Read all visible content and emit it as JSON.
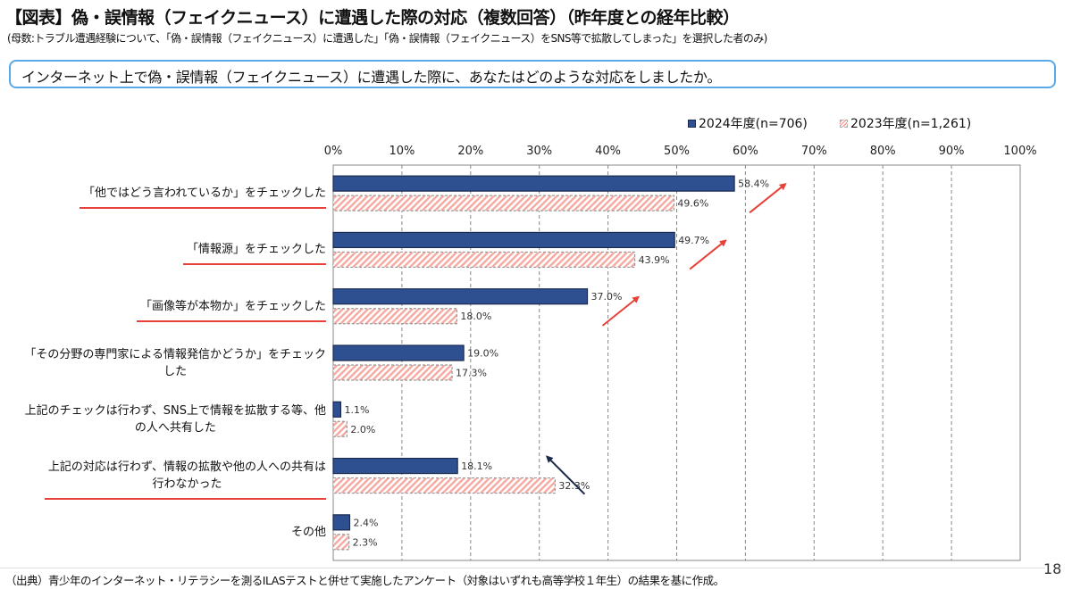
{
  "header": {
    "title": "【図表】偽・誤情報（フェイクニュース）に遭遇した際の対応（複数回答）（昨年度との経年比較）",
    "subtitle": "(母数:トラブル遭遇経験について、「偽・誤情報（フェイクニュース）に遭遇した」「偽・誤情報（フェイクニュース）をSNS等で拡散してしまった」を選択した者のみ)",
    "question": "インターネット上で偽・誤情報（フェイクニュース）に遭遇した際に、あなたはどのような対応をしましたか。"
  },
  "footer": {
    "source": "（出典）青少年のインターネット・リテラシーを測るILASテストと併せて実施したアンケート（対象はいずれも高等学校１年生）の結果を基に作成。",
    "page_number": "18"
  },
  "colors": {
    "series_2024": "#2f5090",
    "series_2023": "#f5a9a0",
    "accent_red": "#e8413a",
    "arrow_navy": "#1c2a4a",
    "question_border": "#5aa9e6"
  },
  "chart_data": {
    "type": "bar",
    "orientation": "horizontal",
    "title": "偽・誤情報（フェイクニュース）に遭遇した際の対応（複数回答）",
    "xlabel": "",
    "ylabel": "",
    "xlim": [
      0,
      100
    ],
    "x_ticks": [
      "0%",
      "10%",
      "20%",
      "30%",
      "40%",
      "50%",
      "60%",
      "70%",
      "80%",
      "90%",
      "100%"
    ],
    "grid": true,
    "legend_position": "top-right",
    "categories": [
      [
        "「他ではどう言われているか」をチェックした"
      ],
      [
        "「情報源」をチェックした"
      ],
      [
        "「画像等が本物か」をチェックした"
      ],
      [
        "「その分野の専門家による情報発信かどうか」をチェック",
        "した"
      ],
      [
        "上記のチェックは行わず、SNS上で情報を拡散する等、他",
        "の人へ共有した"
      ],
      [
        "上記の対応は行わず、情報の拡散や他の人への共有は",
        "行わなかった"
      ],
      [
        "その他"
      ]
    ],
    "series": [
      {
        "name": "2024年度(n=706)",
        "values": [
          58.4,
          49.7,
          37.0,
          19.0,
          1.1,
          18.1,
          2.4
        ],
        "labels": [
          "58.4%",
          "49.7%",
          "37.0%",
          "19.0%",
          "1.1%",
          "18.1%",
          "2.4%"
        ]
      },
      {
        "name": "2023年度(n=1,261)",
        "values": [
          49.6,
          43.9,
          18.0,
          17.3,
          2.0,
          32.3,
          2.3
        ],
        "labels": [
          "49.6%",
          "43.9%",
          "18.0%",
          "17.3%",
          "2.0%",
          "32.3%",
          "2.3%"
        ]
      }
    ],
    "annotations": {
      "underlined_categories": [
        0,
        1,
        2,
        5
      ],
      "up_arrows_red": [
        0,
        1,
        2
      ],
      "down_arrow_navy": [
        5
      ]
    }
  }
}
